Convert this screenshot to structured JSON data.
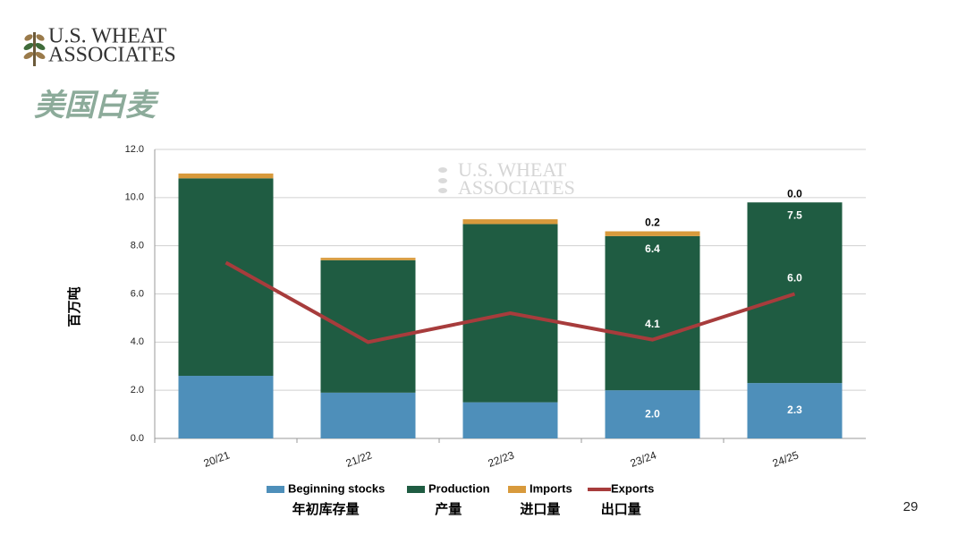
{
  "header": {
    "logo_line1": "U.S. WHEAT",
    "logo_line2": "ASSOCIATES",
    "title": "美国白麦"
  },
  "chart_data": {
    "type": "bar",
    "stacked": true,
    "y_label": "百万吨",
    "categories": [
      "20/21",
      "21/22",
      "22/23",
      "23/24",
      "24/25"
    ],
    "ylim": [
      0,
      12
    ],
    "yticks": [
      {
        "value": 0,
        "label": "0.0"
      },
      {
        "value": 2,
        "label": "2.0"
      },
      {
        "value": 4,
        "label": "4.0"
      },
      {
        "value": 6,
        "label": "6.0"
      },
      {
        "value": 8,
        "label": "8.0"
      },
      {
        "value": 10,
        "label": "10.0"
      },
      {
        "value": 12,
        "label": "12.0"
      }
    ],
    "grid": true,
    "series": [
      {
        "name": "Beginning stocks",
        "name_cn": "年初库存量",
        "type": "bar",
        "color": "#4e8fba",
        "values": [
          2.6,
          1.9,
          1.5,
          2.0,
          2.3
        ],
        "value_labels": [
          null,
          null,
          null,
          "2.0",
          "2.3"
        ]
      },
      {
        "name": "Production",
        "name_cn": "产量",
        "type": "bar",
        "color": "#1f5c42",
        "values": [
          8.2,
          5.5,
          7.4,
          6.4,
          7.5
        ],
        "value_labels": [
          null,
          null,
          null,
          "6.4",
          "7.5"
        ]
      },
      {
        "name": "Imports",
        "name_cn": "进口量",
        "type": "bar",
        "color": "#d89a3c",
        "values": [
          0.2,
          0.1,
          0.2,
          0.2,
          0.0
        ],
        "value_labels": [
          null,
          null,
          null,
          "0.2",
          "0.0"
        ]
      },
      {
        "name": "Exports",
        "name_cn": "出口量",
        "type": "line",
        "color": "#a73c3c",
        "values": [
          7.3,
          4.0,
          5.2,
          4.1,
          6.0
        ],
        "value_labels": [
          null,
          null,
          null,
          "4.1",
          "6.0"
        ]
      }
    ]
  },
  "page_number": "29"
}
